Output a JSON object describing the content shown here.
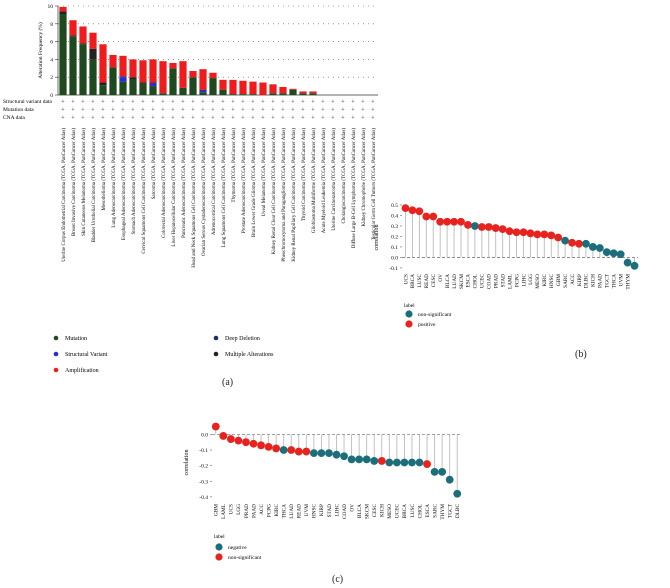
{
  "panel_labels": [
    "(a)",
    "(b)",
    "(c)"
  ],
  "chart_data": [
    {
      "type": "bar",
      "panel": "(a)",
      "stacked": true,
      "ylabel": "Alteration Frequency (%)",
      "ylim": [
        0,
        10
      ],
      "yticks": [
        0,
        2,
        4,
        6,
        8,
        10
      ],
      "grid": "dotted-horizontal",
      "categories": [
        "Uterine Corpus Endometrial Carcinoma (TCGA, PanCancer Atlas)",
        "Breast Invasive Carcinoma (TCGA, PanCancer Atlas)",
        "Skin Cutaneous Melanoma (TCGA, PanCancer Atlas)",
        "Bladder Urothelial Carcinoma (TCGA, PanCancer Atlas)",
        "Mesothelioma (TCGA, PanCancer Atlas)",
        "Lung Adenocarcinoma (TCGA, PanCancer Atlas)",
        "Esophageal Adenocarcinoma (TCGA, PanCancer Atlas)",
        "Stomach Adenocarcinoma (TCGA, PanCancer Atlas)",
        "Cervical Squamous Cell Carcinoma (TCGA, PanCancer Atlas)",
        "Sarcoma (TCGA, PanCancer Atlas)",
        "Colorectal Adenocarcinoma (TCGA, PanCancer Atlas)",
        "Liver Hepatocellular Carcinoma (TCGA, PanCancer Atlas)",
        "Pancreatic Adenocarcinoma (TCGA, PanCancer Atlas)",
        "Head and Neck Squamous Cell Carcinoma (TCGA, PanCancer Atlas)",
        "Ovarian Serous Cystadenocarcinoma (TCGA, PanCancer Atlas)",
        "Adrenocortical Carcinoma (TCGA, PanCancer Atlas)",
        "Lung Squamous Cell Carcinoma (TCGA, PanCancer Atlas)",
        "Thymoma (TCGA, PanCancer Atlas)",
        "Prostate Adenocarcinoma (TCGA, PanCancer Atlas)",
        "Brain Lower Grade Glioma (TCGA, PanCancer Atlas)",
        "Uveal Melanoma (TCGA, PanCancer Atlas)",
        "Kidney Renal Clear Cell Carcinoma (TCGA, PanCancer Atlas)",
        "Pheochromocytoma and Paraganglioma (TCGA, PanCancer Atlas)",
        "Kidney Renal Papillary Cell Carcinoma (TCGA, PanCancer Atlas)",
        "Thyroid Carcinoma (TCGA, PanCancer Atlas)",
        "Glioblastoma Multiforme (TCGA, PanCancer Atlas)",
        "Acute Myeloid Leukemia (TCGA, PanCancer Atlas)",
        "Uterine Carcinosarcoma (TCGA, PanCancer Atlas)",
        "Cholangiocarcinoma (TCGA, PanCancer Atlas)",
        "Diffuse Large B-Cell Lymphoma (TCGA, PanCancer Atlas)",
        "Kidney Chromophobe (TCGA, PanCancer Atlas)",
        "Testicular Germ Cell Tumors (TCGA, PanCancer Atlas)"
      ],
      "series": [
        {
          "name": "Mutation",
          "color": "#1f4a1f",
          "values": [
            9.1,
            6.6,
            5.7,
            4.0,
            1.1,
            3.1,
            1.5,
            1.8,
            1.3,
            1.0,
            0.2,
            3.0,
            0.8,
            2.0,
            0.3,
            1.9,
            0.6,
            0.1,
            0.1,
            0.1,
            0,
            0.2,
            0.2,
            0.6,
            0.2,
            0.2,
            0,
            0,
            0,
            0,
            0,
            0
          ]
        },
        {
          "name": "Structural Variant",
          "color": "#2a2ad6",
          "values": [
            0,
            0,
            0,
            0,
            0,
            0,
            0.5,
            0,
            0,
            0.3,
            0,
            0,
            0,
            0,
            0.2,
            0,
            0,
            0,
            0,
            0,
            0,
            0,
            0,
            0,
            0,
            0,
            0,
            0,
            0,
            0,
            0,
            0
          ]
        },
        {
          "name": "Amplification",
          "color": "#ee1c1c",
          "values": [
            0.5,
            1.7,
            1.9,
            1.8,
            4.3,
            1.4,
            2.3,
            2.0,
            2.5,
            2.6,
            3.6,
            0.6,
            3.0,
            0.7,
            2.3,
            0.6,
            1.1,
            1.6,
            1.5,
            1.4,
            1.4,
            1.0,
            0.7,
            0.1,
            0.2,
            0.2,
            0,
            0,
            0,
            0,
            0,
            0
          ]
        },
        {
          "name": "Deep Deletion",
          "color": "#1a2c6b",
          "values": [
            0,
            0,
            0,
            0,
            0,
            0,
            0.1,
            0,
            0,
            0.1,
            0,
            0,
            0,
            0,
            0.1,
            0,
            0,
            0,
            0,
            0,
            0,
            0,
            0,
            0,
            0,
            0,
            0,
            0,
            0,
            0,
            0,
            0
          ]
        },
        {
          "name": "Multiple Alterations",
          "color": "#222222",
          "values": [
            0.3,
            0.1,
            0.1,
            1.2,
            0.3,
            0,
            0,
            0.2,
            0.1,
            0,
            0,
            0,
            0,
            0,
            0,
            0,
            0,
            0,
            0,
            0,
            0,
            0,
            0,
            0,
            0,
            0,
            0,
            0,
            0,
            0,
            0,
            0
          ]
        }
      ],
      "track_labels": [
        "Structural variant data",
        "Mutation data",
        "CNA data"
      ],
      "track_marker": "+",
      "legend": [
        "Mutation",
        "Structural Variant",
        "Amplification",
        "Deep Deletion",
        "Multiple Alterations"
      ]
    },
    {
      "type": "lollipop",
      "panel": "(b)",
      "ylabel": "correlation",
      "ylim": [
        -0.12,
        0.5
      ],
      "yticks": [
        -0.1,
        0.0,
        0.1,
        0.2,
        0.3,
        0.4,
        0.5
      ],
      "ytick_labels": [
        "-0.1",
        "0.0",
        "0.1",
        "0.2",
        "0.3",
        "0.4",
        "0.5"
      ],
      "categories": [
        "UCS",
        "BRCA",
        "LUSC",
        "READ",
        "CESC",
        "OV",
        "BLCA",
        "LUAD",
        "SKCM",
        "ESCA",
        "CHOL",
        "UCEC",
        "COAD",
        "PRAD",
        "STAD",
        "LAML",
        "PCPG",
        "LIHC",
        "LGG",
        "MESO",
        "KIRC",
        "HNSC",
        "GBM",
        "SARC",
        "ACC",
        "KIRP",
        "DLBC",
        "KICH",
        "PAAD",
        "TGCT",
        "THCA",
        "UVM",
        "THYM"
      ],
      "values": [
        0.47,
        0.45,
        0.44,
        0.39,
        0.39,
        0.34,
        0.34,
        0.34,
        0.34,
        0.31,
        0.3,
        0.29,
        0.29,
        0.28,
        0.27,
        0.25,
        0.24,
        0.24,
        0.23,
        0.22,
        0.22,
        0.21,
        0.19,
        0.16,
        0.14,
        0.13,
        0.13,
        0.1,
        0.09,
        0.05,
        0.04,
        0.03,
        -0.05
      ],
      "groups": [
        "positive",
        "positive",
        "positive",
        "positive",
        "positive",
        "positive",
        "positive",
        "positive",
        "positive",
        "positive",
        "non-significant",
        "positive",
        "positive",
        "positive",
        "positive",
        "positive",
        "positive",
        "positive",
        "positive",
        "positive",
        "positive",
        "positive",
        "positive",
        "non-significant",
        "positive",
        "positive",
        "non-significant",
        "non-significant",
        "non-significant",
        "non-significant",
        "non-significant",
        "non-significant",
        "non-significant"
      ],
      "trailing_value": -0.08,
      "trailing_group": "non-significant",
      "legend_title": "label",
      "legend": [
        {
          "name": "non-significant",
          "color": "#1b6e7a"
        },
        {
          "name": "positive",
          "color": "#e8231f"
        }
      ]
    },
    {
      "type": "lollipop",
      "panel": "(c)",
      "ylabel": "correlation",
      "ylim": [
        -0.42,
        0.06
      ],
      "yticks": [
        0.0,
        -0.1,
        -0.2,
        -0.3,
        -0.4
      ],
      "ytick_labels": [
        "0.0",
        "-0.1",
        "-0.2",
        "-0.3",
        "-0.4"
      ],
      "categories": [
        "GBM",
        "LAML",
        "UCS",
        "LGG",
        "PRAD",
        "PAAD",
        "ACC",
        "PCPG",
        "KIRC",
        "THCA",
        "LUAD",
        "READ",
        "UVM",
        "HNSC",
        "KIRP",
        "STAD",
        "LIHC",
        "COAD",
        "OV",
        "BLCA",
        "SKCM",
        "CESC",
        "KICH",
        "MESO",
        "UCEC",
        "BRCA",
        "LUSC",
        "CHOL",
        "ESCA",
        "SARC",
        "THYM",
        "TGCT",
        "DLBC"
      ],
      "values": [
        0.05,
        -0.01,
        -0.03,
        -0.04,
        -0.05,
        -0.06,
        -0.07,
        -0.08,
        -0.09,
        -0.1,
        -0.1,
        -0.11,
        -0.11,
        -0.12,
        -0.12,
        -0.12,
        -0.13,
        -0.14,
        -0.16,
        -0.16,
        -0.16,
        -0.17,
        -0.17,
        -0.18,
        -0.18,
        -0.18,
        -0.18,
        -0.18,
        -0.19,
        -0.24,
        -0.24,
        -0.29,
        -0.38
      ],
      "groups": [
        "non-significant",
        "non-significant",
        "non-significant",
        "non-significant",
        "non-significant",
        "non-significant",
        "non-significant",
        "non-significant",
        "non-significant",
        "negative",
        "non-significant",
        "non-significant",
        "non-significant",
        "negative",
        "negative",
        "negative",
        "negative",
        "negative",
        "negative",
        "negative",
        "negative",
        "negative",
        "non-significant",
        "negative",
        "negative",
        "negative",
        "negative",
        "negative",
        "non-significant",
        "negative",
        "negative",
        "negative",
        "negative"
      ],
      "legend_title": "label",
      "legend": [
        {
          "name": "negative",
          "color": "#1b6e7a"
        },
        {
          "name": "non-significant",
          "color": "#e8231f"
        }
      ]
    }
  ]
}
